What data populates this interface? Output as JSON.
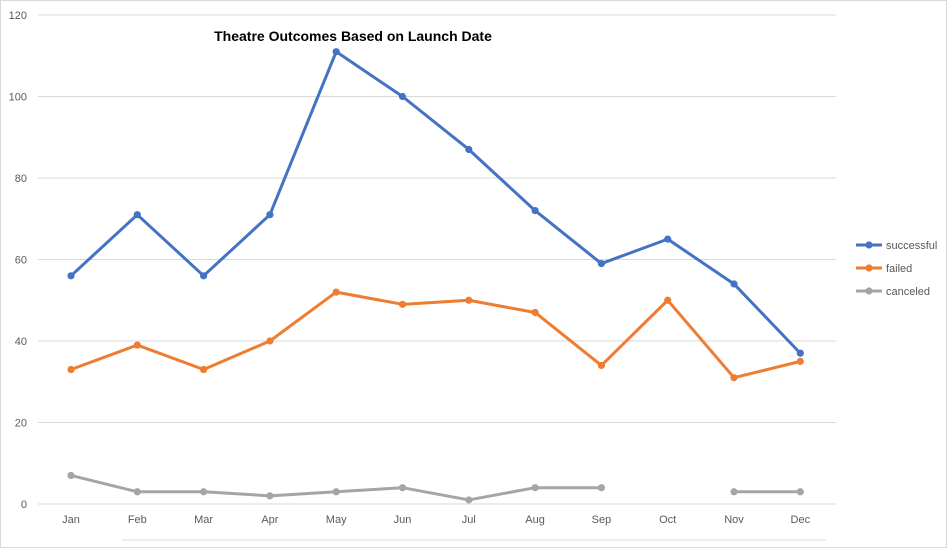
{
  "chart_data": {
    "type": "line",
    "title": "Theatre Outcomes Based on Launch Date",
    "xlabel": "",
    "ylabel": "",
    "categories": [
      "Jan",
      "Feb",
      "Mar",
      "Apr",
      "May",
      "Jun",
      "Jul",
      "Aug",
      "Sep",
      "Oct",
      "Nov",
      "Dec"
    ],
    "ylim": [
      0,
      120
    ],
    "yticks": [
      0,
      20,
      40,
      60,
      80,
      100,
      120
    ],
    "grid": true,
    "legend_position": "right",
    "series": [
      {
        "name": "successful",
        "color": "#4472C4",
        "values": [
          56,
          71,
          56,
          71,
          111,
          100,
          87,
          72,
          59,
          65,
          54,
          37
        ]
      },
      {
        "name": "failed",
        "color": "#ED7D31",
        "values": [
          33,
          39,
          33,
          40,
          52,
          49,
          50,
          47,
          34,
          50,
          31,
          35
        ]
      },
      {
        "name": "canceled",
        "color": "#A5A5A5",
        "values": [
          7,
          3,
          3,
          2,
          3,
          4,
          1,
          4,
          4,
          null,
          3,
          3
        ]
      }
    ]
  }
}
